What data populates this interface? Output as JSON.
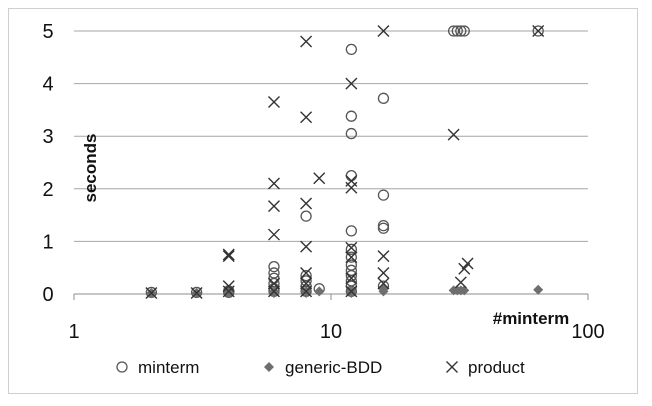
{
  "chart_data": {
    "type": "scatter",
    "title": "",
    "xlabel": "#minterm",
    "ylabel": "seconds",
    "x_scale": "log",
    "xlim": [
      1,
      100
    ],
    "ylim": [
      0,
      5
    ],
    "x_ticks": [
      "1",
      "10",
      "100"
    ],
    "y_ticks": [
      "0",
      "1",
      "2",
      "3",
      "4",
      "5"
    ],
    "grid": "horizontal",
    "legend_position": "bottom",
    "series": [
      {
        "name": "minterm",
        "marker": "circle",
        "points": [
          [
            2,
            0.03
          ],
          [
            3,
            0.03
          ],
          [
            4,
            0.03
          ],
          [
            4,
            0.06
          ],
          [
            6,
            0.05
          ],
          [
            6,
            0.1
          ],
          [
            6,
            0.2
          ],
          [
            6,
            0.3
          ],
          [
            6,
            0.4
          ],
          [
            6,
            0.52
          ],
          [
            8,
            0.05
          ],
          [
            8,
            0.15
          ],
          [
            8,
            0.25
          ],
          [
            8,
            0.35
          ],
          [
            8,
            1.48
          ],
          [
            9,
            0.1
          ],
          [
            12,
            0.05
          ],
          [
            12,
            0.15
          ],
          [
            12,
            0.25
          ],
          [
            12,
            0.35
          ],
          [
            12,
            0.45
          ],
          [
            12,
            0.55
          ],
          [
            12,
            0.7
          ],
          [
            12,
            0.85
          ],
          [
            12,
            1.2
          ],
          [
            12,
            2.25
          ],
          [
            12,
            3.05
          ],
          [
            12,
            3.38
          ],
          [
            12,
            4.65
          ],
          [
            16,
            0.15
          ],
          [
            16,
            1.25
          ],
          [
            16,
            1.3
          ],
          [
            16,
            1.88
          ],
          [
            16,
            3.72
          ],
          [
            30,
            5.0
          ],
          [
            31,
            5.0
          ],
          [
            32,
            5.0
          ],
          [
            33,
            5.0
          ],
          [
            64,
            5.0
          ]
        ]
      },
      {
        "name": "generic-BDD",
        "marker": "diamond",
        "points": [
          [
            2,
            0.02
          ],
          [
            3,
            0.02
          ],
          [
            4,
            0.02
          ],
          [
            4,
            0.04
          ],
          [
            6,
            0.02
          ],
          [
            6,
            0.05
          ],
          [
            8,
            0.02
          ],
          [
            8,
            0.05
          ],
          [
            9,
            0.05
          ],
          [
            12,
            0.02
          ],
          [
            12,
            0.06
          ],
          [
            16,
            0.05
          ],
          [
            16,
            0.1
          ],
          [
            30,
            0.07
          ],
          [
            31,
            0.07
          ],
          [
            32,
            0.07
          ],
          [
            33,
            0.07
          ],
          [
            64,
            0.08
          ]
        ]
      },
      {
        "name": "product",
        "marker": "x",
        "points": [
          [
            2,
            0.02
          ],
          [
            3,
            0.02
          ],
          [
            4,
            0.05
          ],
          [
            4,
            0.15
          ],
          [
            4,
            0.72
          ],
          [
            4,
            0.75
          ],
          [
            6,
            0.05
          ],
          [
            6,
            0.2
          ],
          [
            6,
            1.13
          ],
          [
            6,
            1.67
          ],
          [
            6,
            2.1
          ],
          [
            6,
            3.65
          ],
          [
            8,
            0.05
          ],
          [
            8,
            0.2
          ],
          [
            8,
            0.4
          ],
          [
            8,
            0.9
          ],
          [
            8,
            1.72
          ],
          [
            8,
            3.36
          ],
          [
            8,
            4.8
          ],
          [
            9,
            2.2
          ],
          [
            12,
            0.05
          ],
          [
            12,
            0.3
          ],
          [
            12,
            0.7
          ],
          [
            12,
            0.88
          ],
          [
            12,
            2.02
          ],
          [
            12,
            2.15
          ],
          [
            12,
            4.0
          ],
          [
            16,
            0.2
          ],
          [
            16,
            0.4
          ],
          [
            16,
            0.72
          ],
          [
            16,
            5.0
          ],
          [
            30,
            3.03
          ],
          [
            32,
            0.22
          ],
          [
            33,
            0.48
          ],
          [
            34,
            0.58
          ],
          [
            64,
            5.0
          ]
        ]
      }
    ]
  }
}
